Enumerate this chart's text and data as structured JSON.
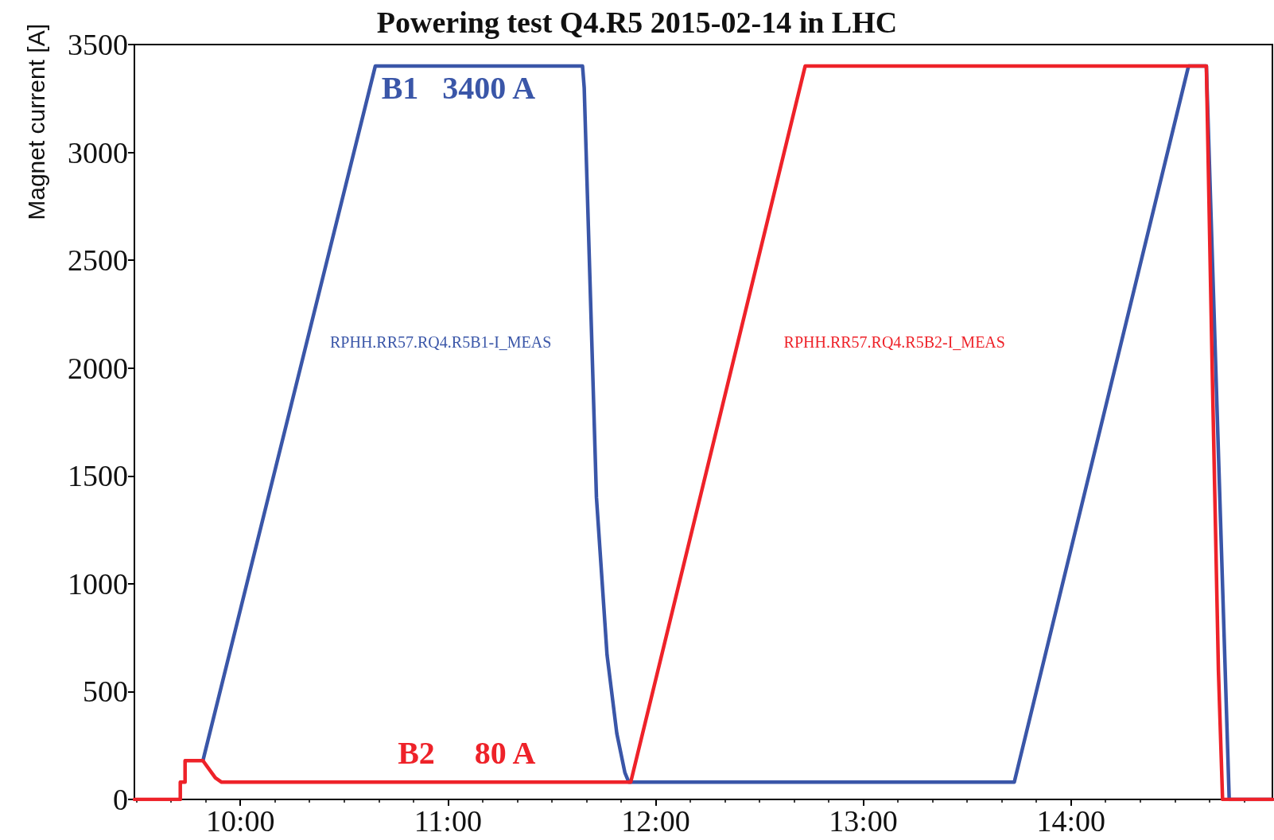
{
  "chart_data": {
    "type": "line",
    "title": "Powering test Q4.R5 2015-02-14 in LHC",
    "ylabel": "Magnet current [A]",
    "xlim": [
      9.49,
      14.97
    ],
    "ylim": [
      0,
      3500
    ],
    "xticks": [
      {
        "value": 10,
        "label": "10:00"
      },
      {
        "value": 11,
        "label": "11:00"
      },
      {
        "value": 12,
        "label": "12:00"
      },
      {
        "value": 13,
        "label": "13:00"
      },
      {
        "value": 14,
        "label": "14:00"
      }
    ],
    "yticks": [
      0,
      500,
      1000,
      1500,
      2000,
      2500,
      3000,
      3500
    ],
    "grid": false,
    "legend": false,
    "marker": "none",
    "line_style": "solid",
    "series": [
      {
        "name": "RPHH.RR57.RQ4.R5B1-I_MEAS",
        "color": "#3a56a8",
        "x": [
          9.82,
          10.65,
          11.648,
          11.656,
          11.715,
          11.766,
          11.813,
          11.852,
          11.871,
          13.727,
          14.566,
          14.652,
          14.762,
          14.97
        ],
        "values": [
          180,
          3400,
          3400,
          3300,
          1400,
          670,
          306,
          124,
          80,
          80,
          3400,
          3400,
          0,
          0
        ]
      },
      {
        "name": "RPHH.RR57.RQ4.R5B2-I_MEAS",
        "color": "#ee2229",
        "x": [
          9.49,
          9.711,
          9.711,
          9.734,
          9.734,
          9.82,
          9.88,
          9.91,
          11.88,
          12.72,
          14.652,
          14.68,
          14.71,
          14.73,
          14.97
        ],
        "values": [
          0,
          0,
          80,
          80,
          180,
          180,
          100,
          80,
          80,
          3400,
          3400,
          2000,
          600,
          0,
          0
        ]
      }
    ],
    "annotations": [
      "B1   3400 A",
      "B2     80 A"
    ]
  }
}
